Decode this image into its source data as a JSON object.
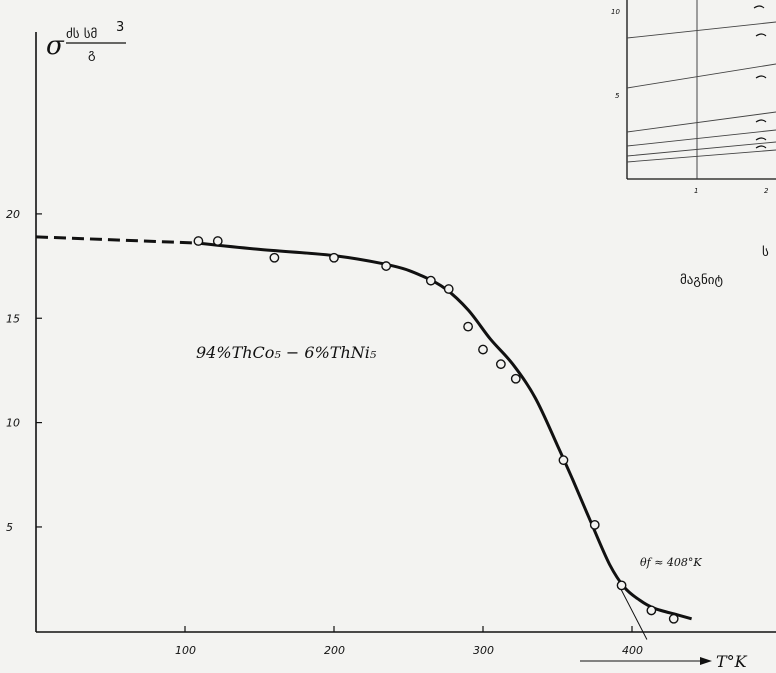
{
  "chart_data": {
    "type": "line",
    "ylabel_symbol": "σ",
    "ylabel_unit_num": "ძს სმ",
    "ylabel_unit_exp": "3",
    "ylabel_unit_den": "გ",
    "xlabel": "T°K",
    "xlim": [
      0,
      450
    ],
    "ylim": [
      0,
      25
    ],
    "x_ticks": [
      100,
      200,
      300,
      400
    ],
    "y_ticks": [
      5,
      10,
      15,
      20
    ],
    "x_tick_labels": [
      "100",
      "200",
      "300",
      "400"
    ],
    "y_tick_labels": [
      "5",
      "10",
      "15",
      "20"
    ],
    "grid": false,
    "annotation_composition": "94%ThCo₅ − 6%ThNi₅",
    "annotation_curie": "θf ≈ 408°K",
    "curie_tangent": [
      [
        392,
        2.1
      ],
      [
        410,
        -0.2
      ]
    ],
    "fit_curve": {
      "x": [
        109,
        150,
        200,
        240,
        260,
        275,
        290,
        305,
        320,
        335,
        350,
        360,
        372,
        385,
        395,
        405,
        415,
        430,
        440
      ],
      "y": [
        18.6,
        18.3,
        18.0,
        17.5,
        17.0,
        16.4,
        15.4,
        14.0,
        12.8,
        11.2,
        8.9,
        7.3,
        5.3,
        3.2,
        2.1,
        1.5,
        1.1,
        0.8,
        0.6
      ]
    },
    "extrapolation": {
      "x": [
        0,
        109
      ],
      "y": [
        18.9,
        18.6
      ]
    },
    "points": {
      "x": [
        109,
        122,
        160,
        200,
        235,
        265,
        277,
        290,
        300,
        312,
        322,
        354,
        375,
        393,
        413,
        428
      ],
      "y": [
        18.7,
        18.7,
        17.9,
        17.9,
        17.5,
        16.8,
        16.4,
        14.6,
        13.5,
        12.8,
        12.1,
        8.2,
        5.1,
        2.2,
        1.0,
        0.6
      ]
    }
  },
  "inset": {
    "y_tick_labels": [
      "10",
      "5"
    ],
    "x_tick_labels": [
      "1",
      "2"
    ],
    "caption_letter": "ს",
    "caption_text": "მაგნიტ"
  }
}
